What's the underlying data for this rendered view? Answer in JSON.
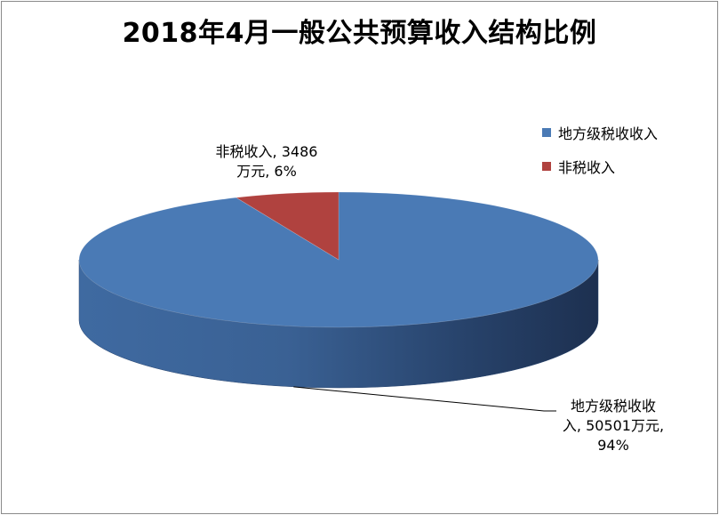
{
  "chart_data": {
    "type": "pie",
    "title": "2018年4月一般公共预算收入结构比例",
    "slices": [
      {
        "name": "地方级税收收入",
        "value": 50501,
        "percent": 94,
        "color": "#4a7ab5",
        "label_lines": [
          "地方级税收收",
          "入, 50501万元,",
          "94%"
        ]
      },
      {
        "name": "非税收入",
        "value": 3486,
        "percent": 6,
        "color": "#b0423f",
        "label_lines": [
          "非税收入, 3486",
          "万元, 6%"
        ]
      }
    ],
    "legend_position": "right"
  }
}
